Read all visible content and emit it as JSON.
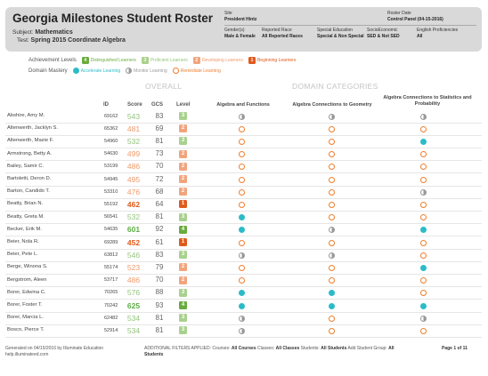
{
  "header": {
    "title": "Georgia Milestones Student Roster",
    "subject_label": "Subject:",
    "subject_value": "Mathematics",
    "test_label": "Test:",
    "test_value": "Spring 2015 Coordinate Algebra",
    "site_label": "Site",
    "site_value": "President Hintz",
    "roster_date_label": "Roster Date",
    "roster_date_value": "Control Panel (04-15-2016)",
    "gender_label": "Gender(s)",
    "gender_value": "Male & Female",
    "race_label": "Reported Race",
    "race_value": "All Reported Races",
    "sped_label": "Special Education",
    "sped_value": "Special & Non Special",
    "ses_label": "SocioEconomic",
    "ses_value": "SED & Not SED",
    "ell_label": "English Proficiencies",
    "ell_value": "All"
  },
  "legend": {
    "achievement_label": "Achievement Levels",
    "levels": [
      {
        "num": "4",
        "label": "Distinguished Learners",
        "color": "#6aab3f"
      },
      {
        "num": "3",
        "label": "Proficient Learners",
        "color": "#a9d18e"
      },
      {
        "num": "2",
        "label": "Developing Learners",
        "color": "#f2a47d"
      },
      {
        "num": "1",
        "label": "Beginning Learners",
        "color": "#e05a1c"
      }
    ],
    "domain_label": "Domain Mastery",
    "domain": [
      {
        "label": "Accelerate Learning",
        "color": "#2bbbc8"
      },
      {
        "label": "Monitor Learning",
        "color": "#999999"
      },
      {
        "label": "Remediate Learning",
        "color": "#ef7d2e"
      }
    ]
  },
  "sections": {
    "overall": "OVERALL",
    "domain": "DOMAIN CATEGORIES"
  },
  "columns": {
    "id": "ID",
    "score": "Score",
    "gcs": "GCS",
    "level": "Level",
    "d1": "Algebra and Functions",
    "d2": "Algebra Connections to Geometry",
    "d3": "Algebra Connections to Statistics and Probability"
  },
  "students": [
    {
      "name": "Abshire, Amy M.",
      "id": "69162",
      "score": "543",
      "gcs": "83",
      "level": "3",
      "d1": "monitor",
      "d2": "monitor",
      "d3": "monitor"
    },
    {
      "name": "Altenwerth, Jacklyn S.",
      "id": "65362",
      "score": "481",
      "gcs": "69",
      "level": "2",
      "d1": "remed",
      "d2": "remed",
      "d3": "remed"
    },
    {
      "name": "Altenwerth, Mazie F.",
      "id": "54960",
      "score": "532",
      "gcs": "81",
      "level": "3",
      "d1": "remed",
      "d2": "remed",
      "d3": "accel"
    },
    {
      "name": "Armstrong, Betty A.",
      "id": "54630",
      "score": "499",
      "gcs": "73",
      "level": "2",
      "d1": "remed",
      "d2": "remed",
      "d3": "remed"
    },
    {
      "name": "Bailey, Samir C.",
      "id": "53199",
      "score": "486",
      "gcs": "70",
      "level": "2",
      "d1": "remed",
      "d2": "remed",
      "d3": "remed"
    },
    {
      "name": "Bartoletti, Deron D.",
      "id": "54945",
      "score": "495",
      "gcs": "72",
      "level": "2",
      "d1": "remed",
      "d2": "remed",
      "d3": "remed"
    },
    {
      "name": "Barton, Candido T.",
      "id": "53310",
      "score": "476",
      "gcs": "68",
      "level": "2",
      "d1": "remed",
      "d2": "remed",
      "d3": "monitor"
    },
    {
      "name": "Beatty, Brian N.",
      "id": "55192",
      "score": "462",
      "gcs": "64",
      "level": "1",
      "d1": "remed",
      "d2": "remed",
      "d3": "remed"
    },
    {
      "name": "Beatty, Greta M.",
      "id": "56541",
      "score": "532",
      "gcs": "81",
      "level": "3",
      "d1": "accel",
      "d2": "remed",
      "d3": "remed"
    },
    {
      "name": "Becker, Erik M.",
      "id": "54635",
      "score": "601",
      "gcs": "92",
      "level": "4",
      "d1": "accel",
      "d2": "monitor",
      "d3": "accel"
    },
    {
      "name": "Beier, Nola R.",
      "id": "69289",
      "score": "452",
      "gcs": "61",
      "level": "1",
      "d1": "remed",
      "d2": "remed",
      "d3": "remed"
    },
    {
      "name": "Beier, Pete L.",
      "id": "63812",
      "score": "546",
      "gcs": "83",
      "level": "3",
      "d1": "monitor",
      "d2": "monitor",
      "d3": "remed"
    },
    {
      "name": "Berge, Winona S.",
      "id": "55174",
      "score": "523",
      "gcs": "79",
      "level": "2",
      "d1": "remed",
      "d2": "remed",
      "d3": "accel"
    },
    {
      "name": "Bergstrom, Aleen",
      "id": "53717",
      "score": "486",
      "gcs": "70",
      "level": "2",
      "d1": "remed",
      "d2": "remed",
      "d3": "remed"
    },
    {
      "name": "Borer, Edwina C.",
      "id": "70265",
      "score": "576",
      "gcs": "88",
      "level": "3",
      "d1": "accel",
      "d2": "accel",
      "d3": "remed"
    },
    {
      "name": "Borer, Foster T.",
      "id": "70242",
      "score": "625",
      "gcs": "93",
      "level": "4",
      "d1": "accel",
      "d2": "accel",
      "d3": "accel"
    },
    {
      "name": "Borer, Marcia L.",
      "id": "62482",
      "score": "534",
      "gcs": "81",
      "level": "3",
      "d1": "monitor",
      "d2": "remed",
      "d3": "monitor"
    },
    {
      "name": "Bosco, Pierce T.",
      "id": "52914",
      "score": "534",
      "gcs": "81",
      "level": "3",
      "d1": "monitor",
      "d2": "remed",
      "d3": "remed"
    }
  ],
  "footer": {
    "generated": "Generated on 04/15/2016 by Illuminate Education",
    "help": "help.illuminateed.com",
    "filters_label": "ADDITIONAL FILTERS APPLIED:",
    "courses_label": "Courses:",
    "courses_value": "All Courses",
    "classes_label": "Classes:",
    "classes_value": "All Classes",
    "students_label": "Students:",
    "students_value": "All Students",
    "group_label": "Add Student Group:",
    "group_value": "All",
    "group_value2": "Students",
    "page": "Page 1 of 11"
  }
}
